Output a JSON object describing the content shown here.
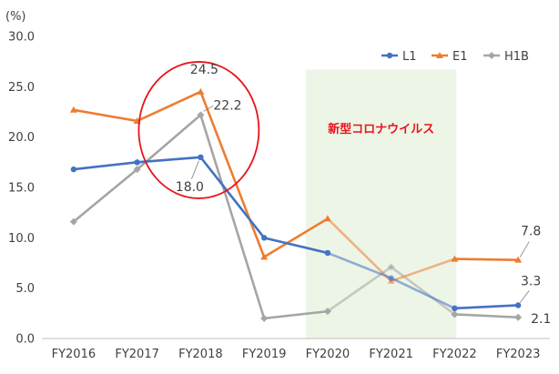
{
  "chart_data": {
    "type": "line",
    "ylabel": "(%)",
    "ylim": [
      0,
      30
    ],
    "yticks": [
      "0.0",
      "5.0",
      "10.0",
      "15.0",
      "20.0",
      "25.0",
      "30.0"
    ],
    "categories": [
      "FY2016",
      "FY2017",
      "FY2018",
      "FY2019",
      "FY2020",
      "FY2021",
      "FY2022",
      "FY2023"
    ],
    "series": [
      {
        "name": "L1",
        "color": "#4472c4",
        "values": [
          16.8,
          17.5,
          18.0,
          10.0,
          8.5,
          6.0,
          3.0,
          3.3
        ]
      },
      {
        "name": "E1",
        "color": "#ed7d31",
        "values": [
          22.7,
          21.6,
          24.5,
          8.1,
          11.9,
          5.7,
          7.9,
          7.8
        ]
      },
      {
        "name": "H1B",
        "color": "#a5a5a5",
        "values": [
          11.6,
          16.8,
          22.2,
          2.0,
          2.7,
          7.1,
          2.4,
          2.1
        ]
      }
    ],
    "legend_position": "top-right",
    "grid": false,
    "highlight": {
      "label": "新型コロナウイルス",
      "from_category": "FY2020",
      "to_category": "FY2022",
      "color": "#edf5e6"
    },
    "circle_around": "FY2018",
    "annotations": [
      {
        "text": "24.5",
        "category": "FY2018",
        "series": "E1"
      },
      {
        "text": "22.2",
        "category": "FY2018",
        "series": "H1B"
      },
      {
        "text": "18.0",
        "category": "FY2018",
        "series": "L1"
      },
      {
        "text": "7.8",
        "category": "FY2023",
        "series": "E1"
      },
      {
        "text": "3.3",
        "category": "FY2023",
        "series": "L1"
      },
      {
        "text": "2.1",
        "category": "FY2023",
        "series": "H1B"
      }
    ]
  }
}
